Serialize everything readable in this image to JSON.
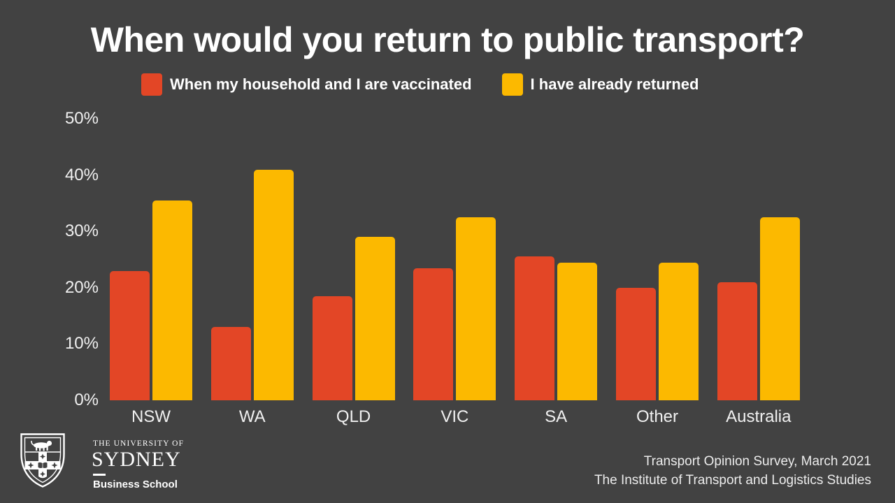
{
  "title": "When would you return to public transport?",
  "chart_data": {
    "type": "bar",
    "categories": [
      "NSW",
      "WA",
      "QLD",
      "VIC",
      "SA",
      "Other",
      "Australia"
    ],
    "series": [
      {
        "name": "When my household and I are vaccinated",
        "color": "#E34626",
        "values": [
          23,
          13,
          18.5,
          23.5,
          25.5,
          20,
          21
        ]
      },
      {
        "name": "I have already returned",
        "color": "#FCB900",
        "values": [
          35.5,
          41,
          29,
          32.5,
          24.5,
          24.5,
          32.5
        ]
      }
    ],
    "xlabel": "",
    "ylabel": "",
    "ylim": [
      0,
      50
    ],
    "ytick_values": [
      0,
      10,
      20,
      30,
      40,
      50
    ],
    "ytick_labels": [
      "0%",
      "10%",
      "20%",
      "30%",
      "40%",
      "50%"
    ],
    "grid": false,
    "legend_position": "top"
  },
  "footer": {
    "line1": "Transport Opinion Survey, March 2021",
    "line2": "The Institute of Transport and Logistics Studies"
  },
  "logo": {
    "line1": "THE UNIVERSITY OF",
    "line2": "SYDNEY",
    "line3": "Business School"
  },
  "colors": {
    "background": "#424242",
    "title_text": "#FFFFFF",
    "axis_text": "#F0F0F0",
    "footer_text": "#ECECEC"
  }
}
